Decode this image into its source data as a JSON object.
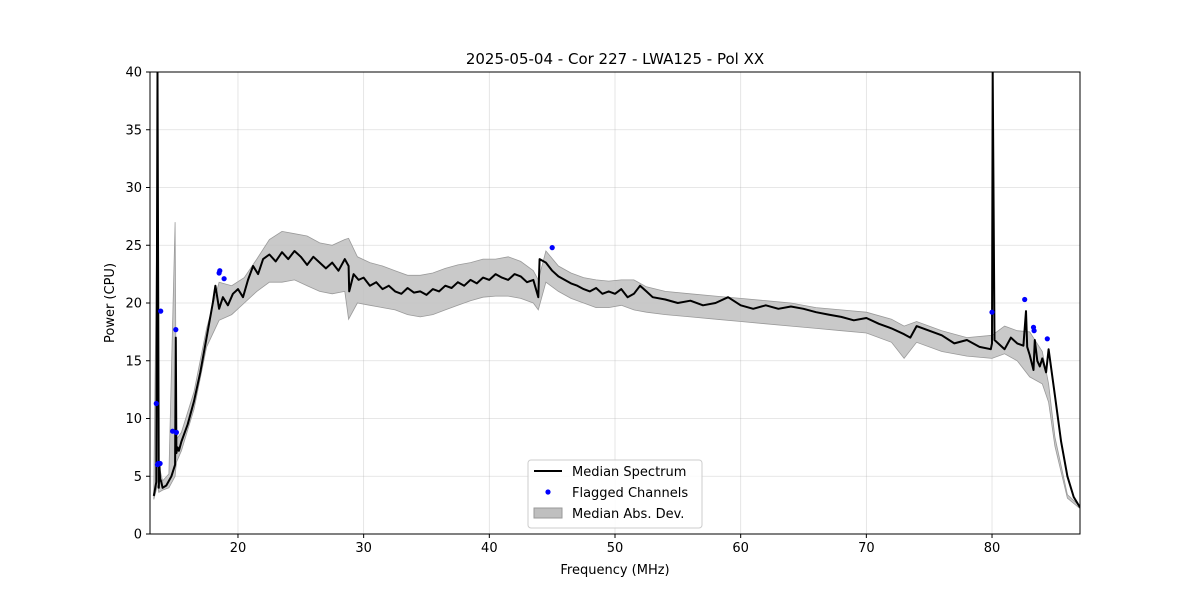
{
  "chart_data": {
    "type": "line",
    "title": "2025-05-04 - Cor 227 - LWA125 - Pol XX",
    "xlabel": "Frequency (MHz)",
    "ylabel": "Power (CPU)",
    "xlim": [
      13,
      87
    ],
    "ylim": [
      0,
      40
    ],
    "xticks": [
      20,
      30,
      40,
      50,
      60,
      70,
      80
    ],
    "yticks": [
      0,
      5,
      10,
      15,
      20,
      25,
      30,
      35,
      40
    ],
    "grid": true,
    "legend_position": "lower-center",
    "legend": [
      "Median Spectrum",
      "Flagged Channels",
      "Median Abs. Dev."
    ],
    "colors": {
      "median": "#000000",
      "flagged": "#0000ff",
      "mad_fill": "#bfbfbf",
      "mad_edge": "#9a9a9a"
    },
    "series": [
      {
        "name": "Median Spectrum",
        "x": [
          13.3,
          13.5,
          13.6,
          13.7,
          13.75,
          13.8,
          13.9,
          14.0,
          14.3,
          14.7,
          15.0,
          15.05,
          15.1,
          15.2,
          15.3,
          15.5,
          16.0,
          16.5,
          17.0,
          17.5,
          18.0,
          18.2,
          18.5,
          18.8,
          19.2,
          19.6,
          20.0,
          20.4,
          20.8,
          21.2,
          21.6,
          22.0,
          22.5,
          23.0,
          23.5,
          24.0,
          24.5,
          25.0,
          25.5,
          26.0,
          26.5,
          27.0,
          27.5,
          28.0,
          28.5,
          28.8,
          28.85,
          29.2,
          29.6,
          30.0,
          30.5,
          31.0,
          31.5,
          32.0,
          32.5,
          33.0,
          33.5,
          34.0,
          34.5,
          35.0,
          35.5,
          36.0,
          36.5,
          37.0,
          37.5,
          38.0,
          38.5,
          39.0,
          39.5,
          40.0,
          40.5,
          41.0,
          41.5,
          42.0,
          42.5,
          43.0,
          43.5,
          43.9,
          44.0,
          44.5,
          45.0,
          45.5,
          46.0,
          46.5,
          47.0,
          47.5,
          48.0,
          48.5,
          49.0,
          49.5,
          50.0,
          50.5,
          51.0,
          51.5,
          52.0,
          52.5,
          53.0,
          54.0,
          55.0,
          56.0,
          57.0,
          58.0,
          59.0,
          60.0,
          61.0,
          62.0,
          63.0,
          64.0,
          65.0,
          66.0,
          67.0,
          68.0,
          69.0,
          70.0,
          71.0,
          72.0,
          73.0,
          73.5,
          74.0,
          75.0,
          76.0,
          77.0,
          78.0,
          79.0,
          79.9,
          80.0,
          80.05,
          80.2,
          81.0,
          81.5,
          82.0,
          82.5,
          82.7,
          82.8,
          83.0,
          83.3,
          83.4,
          83.6,
          83.8,
          84.0,
          84.3,
          84.5,
          85.0,
          85.5,
          86.0,
          86.5,
          87.0
        ],
        "y": [
          3.3,
          4.5,
          40,
          4.0,
          6.0,
          4.8,
          4.5,
          4.0,
          4.2,
          5.0,
          6.0,
          17.0,
          7.0,
          7.5,
          7.2,
          8.0,
          9.5,
          11.5,
          14.0,
          17.0,
          20.0,
          21.5,
          19.5,
          20.5,
          19.8,
          20.8,
          21.2,
          20.5,
          22.0,
          23.2,
          22.5,
          23.8,
          24.2,
          23.6,
          24.4,
          23.8,
          24.5,
          24.0,
          23.3,
          24.0,
          23.5,
          23.0,
          23.5,
          22.8,
          23.8,
          23.2,
          21.0,
          22.5,
          22.0,
          22.2,
          21.5,
          21.8,
          21.2,
          21.5,
          21.0,
          20.8,
          21.3,
          20.9,
          21.0,
          20.7,
          21.2,
          21.0,
          21.5,
          21.3,
          21.8,
          21.5,
          22.0,
          21.7,
          22.2,
          22.0,
          22.5,
          22.2,
          22.0,
          22.5,
          22.3,
          21.8,
          22.0,
          20.5,
          23.8,
          23.5,
          22.8,
          22.3,
          22.0,
          21.7,
          21.5,
          21.2,
          21.0,
          21.3,
          20.8,
          21.0,
          20.8,
          21.2,
          20.5,
          20.8,
          21.5,
          21.0,
          20.5,
          20.3,
          20.0,
          20.2,
          19.8,
          20.0,
          20.5,
          19.8,
          19.5,
          19.8,
          19.5,
          19.7,
          19.5,
          19.2,
          19.0,
          18.8,
          18.5,
          18.7,
          18.2,
          17.8,
          17.3,
          17.0,
          18.0,
          17.6,
          17.2,
          16.5,
          16.8,
          16.2,
          16.0,
          16.5,
          40,
          16.8,
          16.0,
          17.0,
          16.5,
          16.3,
          19.3,
          16.2,
          15.5,
          14.2,
          16.8,
          15.0,
          14.5,
          15.2,
          14.0,
          16.0,
          12.0,
          8.0,
          5.0,
          3.2,
          2.3
        ]
      },
      {
        "name": "Median Abs. Dev.",
        "x": [
          13.3,
          13.6,
          13.7,
          14.0,
          14.5,
          15.0,
          15.1,
          15.5,
          16.5,
          17.5,
          18.5,
          19.5,
          20.5,
          21.5,
          22.5,
          23.5,
          24.5,
          25.5,
          26.5,
          27.5,
          28.5,
          28.8,
          29.5,
          30.5,
          31.5,
          32.5,
          33.5,
          34.5,
          35.5,
          36.5,
          37.5,
          38.5,
          39.5,
          40.5,
          41.5,
          42.5,
          43.5,
          43.9,
          44.5,
          45.5,
          46.5,
          47.5,
          48.5,
          49.5,
          50.5,
          51.5,
          52.5,
          54.0,
          56.0,
          58.0,
          60.0,
          62.0,
          64.0,
          66.0,
          68.0,
          70.0,
          72.0,
          73.0,
          74.0,
          76.0,
          78.0,
          80.0,
          81.0,
          82.0,
          83.0,
          84.0,
          84.5,
          85.0,
          86.0,
          87.0
        ],
        "upper": [
          3.8,
          32.0,
          6.0,
          4.6,
          5.2,
          27.0,
          8.2,
          8.8,
          12.3,
          17.8,
          21.8,
          21.5,
          22.2,
          23.8,
          25.5,
          26.2,
          26.0,
          25.8,
          25.2,
          25.0,
          25.5,
          25.6,
          24.0,
          23.5,
          23.2,
          22.8,
          22.4,
          22.4,
          22.6,
          23.0,
          23.3,
          23.5,
          23.8,
          23.8,
          24.0,
          23.6,
          22.8,
          22.0,
          24.5,
          23.2,
          22.6,
          22.2,
          22.0,
          21.9,
          22.0,
          22.0,
          21.4,
          21.0,
          20.8,
          20.6,
          20.4,
          20.2,
          20.0,
          19.6,
          19.4,
          19.2,
          18.6,
          18.0,
          18.4,
          17.6,
          17.0,
          17.2,
          18.0,
          17.6,
          17.5,
          15.8,
          13.0,
          8.4,
          3.4,
          2.4
        ],
        "lower": [
          3.0,
          4.2,
          3.6,
          3.8,
          4.0,
          5.0,
          6.2,
          7.2,
          10.8,
          16.2,
          18.5,
          19.0,
          20.0,
          21.0,
          21.8,
          21.8,
          22.0,
          21.5,
          21.0,
          20.8,
          21.0,
          18.6,
          20.0,
          19.8,
          19.6,
          19.4,
          19.0,
          18.8,
          19.0,
          19.4,
          19.8,
          20.2,
          20.5,
          20.6,
          20.6,
          20.4,
          20.0,
          19.4,
          21.8,
          21.0,
          20.4,
          20.0,
          19.6,
          19.6,
          19.8,
          19.4,
          19.2,
          19.0,
          18.8,
          18.6,
          18.4,
          18.2,
          18.0,
          17.8,
          17.6,
          17.4,
          16.6,
          15.2,
          16.6,
          15.8,
          15.4,
          15.2,
          15.6,
          15.0,
          13.6,
          13.0,
          11.4,
          7.6,
          3.1,
          2.2
        ]
      },
      {
        "name": "Flagged Channels",
        "x": [
          13.5,
          13.6,
          13.65,
          13.8,
          13.85,
          14.8,
          15.05,
          15.1,
          18.5,
          18.55,
          18.9,
          45.0,
          80.0,
          82.6,
          83.3,
          83.35,
          84.4
        ],
        "y": [
          11.3,
          6.0,
          6.1,
          6.1,
          19.3,
          8.9,
          17.7,
          8.8,
          22.6,
          22.8,
          22.1,
          24.8,
          19.2,
          20.3,
          17.9,
          17.6,
          16.9
        ]
      }
    ]
  }
}
